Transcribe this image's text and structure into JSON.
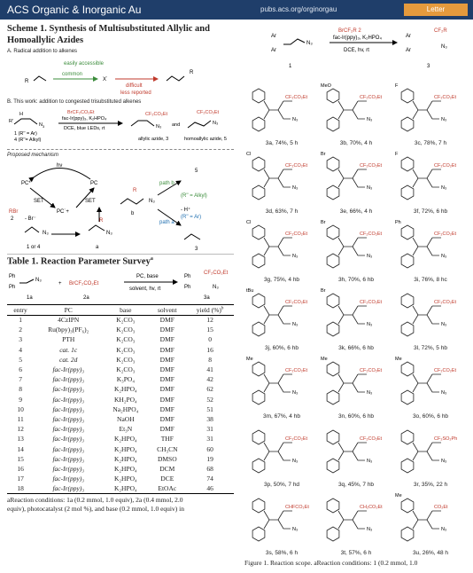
{
  "header": {
    "journal": "ACS Organic & Inorganic Au",
    "url": "pubs.acs.org/orginorgau",
    "badge": "Letter"
  },
  "scheme": {
    "title_line1": "Scheme 1. Synthesis of Multisubstituted Allylic and",
    "title_line2": "Homoallylic Azides",
    "sectionA": "A. Radical addition to alkenes",
    "easily": "easily accessible",
    "common": "common",
    "difficult": "difficult",
    "less_reported": "less reported",
    "x_label": "X˙",
    "sectionB": "B. This work: addition to congested trisubstituted alkenes",
    "reagent1": "BrCF₂CO₂Et",
    "reagent2": "fac-Ir(ppy)₃, K₂HPO₄",
    "reagent3": "DCE, blue LEDs, rt",
    "and": "and",
    "allylic": "allylic azide, 3",
    "homoallylic": "homoallylic azide, 5",
    "sub1": "1 (R'' = Ar)",
    "sub4": "4 (R''= Alkyl)",
    "mechanism": "Proposed mechanism",
    "hv": "hν",
    "pc_star": "PC*",
    "pc": "PC",
    "pc_plus": "PC˙+",
    "set1": "SET",
    "set2": "SET",
    "rbr": "RBr",
    "two": "2",
    "br_minus": "- Br⁻",
    "one_or_four": "1 or 4",
    "a": "a",
    "b": "b",
    "three": "3",
    "five": "5",
    "path_a": "path a",
    "path_b": "path b",
    "r_alkyl": "(R'' = Alkyl)",
    "r_ar": "(R'' = Ar)",
    "h_plus": "- H⁺"
  },
  "table": {
    "title": "Table 1. Reaction Parameter Survey",
    "title_sup": "a",
    "sm_label": "1a",
    "reagent_label": "2a",
    "product_label": "3a",
    "reagent_formula": "BrCF₂CO₂Et",
    "cond_top": "PC, base",
    "cond_bottom": "solvent, hv, rt",
    "columns": [
      "entry",
      "PC",
      "base",
      "solvent",
      "yield (%)"
    ],
    "yield_sup": "b",
    "rows": [
      [
        "1",
        "4CzIPN",
        "K₂CO₃",
        "DMF",
        "12"
      ],
      [
        "2",
        "Ru(bpy)₃(PF₆)₂",
        "K₂CO₃",
        "DMF",
        "15"
      ],
      [
        "3",
        "PTH",
        "K₂CO₃",
        "DMF",
        "0"
      ],
      [
        "4",
        "cat. 1c",
        "K₂CO₃",
        "DMF",
        "16"
      ],
      [
        "5",
        "cat. 2d",
        "K₂CO₃",
        "DMF",
        "8"
      ],
      [
        "6",
        "fac-Ir(ppy)₃",
        "K₂CO₃",
        "DMF",
        "41"
      ],
      [
        "7",
        "fac-Ir(ppy)₃",
        "K₃PO₄",
        "DMF",
        "42"
      ],
      [
        "8",
        "fac-Ir(ppy)₃",
        "K₂HPO₄",
        "DMF",
        "62"
      ],
      [
        "9",
        "fac-Ir(ppy)₃",
        "KH₂PO₄",
        "DMF",
        "52"
      ],
      [
        "10",
        "fac-Ir(ppy)₃",
        "Na₂HPO₄",
        "DMF",
        "51"
      ],
      [
        "11",
        "fac-Ir(ppy)₃",
        "NaOH",
        "DMF",
        "38"
      ],
      [
        "12",
        "fac-Ir(ppy)₃",
        "Et₃N",
        "DMF",
        "31"
      ],
      [
        "13",
        "fac-Ir(ppy)₃",
        "K₂HPO₄",
        "THF",
        "31"
      ],
      [
        "14",
        "fac-Ir(ppy)₃",
        "K₂HPO₄",
        "CH₃CN",
        "60"
      ],
      [
        "15",
        "fac-Ir(ppy)₃",
        "K₂HPO₄",
        "DMSO",
        "19"
      ],
      [
        "16",
        "fac-Ir(ppy)₃",
        "K₂HPO₄",
        "DCM",
        "68"
      ],
      [
        "17",
        "fac-Ir(ppy)₃",
        "K₂HPO₄",
        "DCE",
        "74"
      ],
      [
        "18",
        "fac-Ir(ppy)₃",
        "K₂HPO₄",
        "EtOAc",
        "46"
      ]
    ],
    "footnote1": "aReaction conditions: 1a (0.2 mmol, 1.0 equiv), 2a (0.4 mmol, 2.0",
    "footnote2": "equiv), photocatalyst (2 mol %), and base (0.2 mmol, 1.0 equiv) in"
  },
  "figure": {
    "top_reagent": "BrCF₂R 2",
    "top_cat": "fac-Ir(ppy)₃, K₂HPO₄",
    "top_cond": "DCE, hv, rt",
    "top_sm": "1",
    "top_prod": "3",
    "caption": "Figure 1. Reaction scope. aReaction conditions: 1 (0.2 mmol, 1.0",
    "products": [
      {
        "label": "3a, 74%, 5 h",
        "subst": "",
        "group": "CF₂CO₂Et"
      },
      {
        "label": "3b, 70%, 4 h",
        "subst": "MeO",
        "group": "CF₂CO₂Et"
      },
      {
        "label": "3c, 78%, 7 h",
        "subst": "F",
        "group": "CF₂CO₂Et"
      },
      {
        "label": "3d, 63%, 7 h",
        "subst": "Cl",
        "group": "CF₂CO₂Et"
      },
      {
        "label": "3e, 66%, 4 h",
        "subst": "Br",
        "group": "CF₂CO₂Et"
      },
      {
        "label": "3f, 72%, 6 hb",
        "subst": "F",
        "group": "CF₂CO₂Et"
      },
      {
        "label": "3g, 75%, 4 hb",
        "subst": "Cl",
        "group": "CF₂CO₂Et"
      },
      {
        "label": "3h, 70%, 6 hb",
        "subst": "Br",
        "group": "CF₂CO₂Et"
      },
      {
        "label": "3i, 76%, 8 hc",
        "subst": "Ph",
        "group": "CF₂CO₂Et"
      },
      {
        "label": "3j, 60%, 6 hb",
        "subst": "tBu",
        "group": "CF₂CO₂Et"
      },
      {
        "label": "3k, 66%, 6 hb",
        "subst": "Br",
        "group": "CF₂CO₂Et"
      },
      {
        "label": "3l, 72%, 5 hb",
        "subst": "",
        "group": "CF₂CO₂Et"
      },
      {
        "label": "3m, 67%, 4 hb",
        "subst": "Me",
        "group": "CF₂CO₂Et"
      },
      {
        "label": "3n, 60%, 6 hb",
        "subst": "Me",
        "group": "CF₂CO₂Et"
      },
      {
        "label": "3o, 60%, 6 hb",
        "subst": "Me",
        "group": "CF₂CO₂Et"
      },
      {
        "label": "3p, 50%, 7 hd",
        "subst": "",
        "group": "CF₂CO₂Et"
      },
      {
        "label": "3q, 45%, 7 hb",
        "subst": "",
        "group": "CF₂CO₂Et"
      },
      {
        "label": "3r, 35%, 22 h",
        "subst": "",
        "group": "CF₂SO₂Ph"
      },
      {
        "label": "3s, 58%, 6 h",
        "subst": "",
        "group": "CHFCO₂Et"
      },
      {
        "label": "3t, 57%, 6 h",
        "subst": "",
        "group": "CH₂CO₂Et"
      },
      {
        "label": "3u, 26%, 48 h",
        "subst": "Me",
        "group": "CO₂Et"
      }
    ],
    "n3": "N₃"
  }
}
